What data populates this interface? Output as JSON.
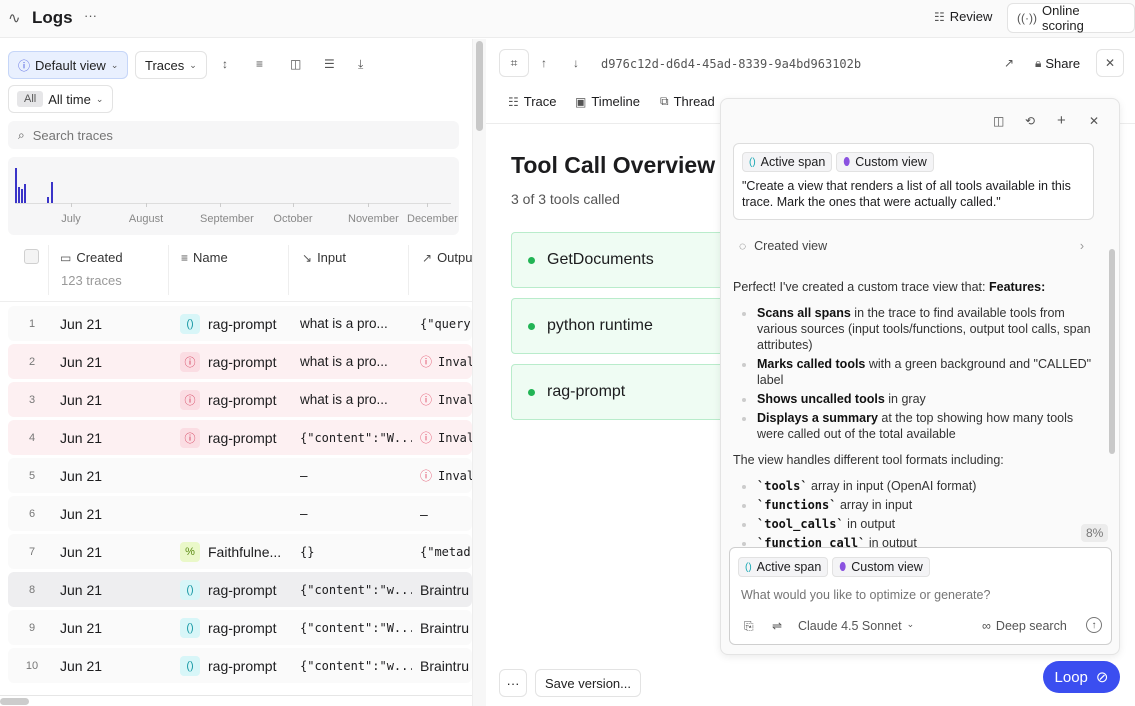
{
  "header": {
    "title": "Logs",
    "more": "···",
    "review": "Review",
    "online_scoring": "Online scoring"
  },
  "toolbar": {
    "view": "Default view",
    "traces": "Traces",
    "time_badge": "All",
    "time": "All time",
    "search_placeholder": "Search traces"
  },
  "histogram": {
    "months": [
      "July",
      "August",
      "September",
      "October",
      "November",
      "December"
    ],
    "bars": [
      1.0,
      0.45,
      0.4,
      0.55,
      0.18,
      0.6
    ]
  },
  "table": {
    "columns": {
      "created": "Created",
      "created_sub": "123 traces",
      "name": "Name",
      "input": "Input",
      "output": "Outpu"
    },
    "rows": [
      {
        "n": "1",
        "date": "Jun 21",
        "badge": "cyan",
        "name": "rag-prompt",
        "input": "what is a pro...",
        "output": "{\"query",
        "out_mono": true,
        "out_err": false,
        "state": ""
      },
      {
        "n": "2",
        "date": "Jun 21",
        "badge": "red",
        "name": "rag-prompt",
        "input": "what is a pro...",
        "output": "Inval",
        "out_mono": true,
        "out_err": true,
        "state": "err"
      },
      {
        "n": "3",
        "date": "Jun 21",
        "badge": "red",
        "name": "rag-prompt",
        "input": "what is a pro...",
        "output": "Inval",
        "out_mono": true,
        "out_err": true,
        "state": "err"
      },
      {
        "n": "4",
        "date": "Jun 21",
        "badge": "red",
        "name": "rag-prompt",
        "input": "{\"content\":\"W...",
        "in_mono": true,
        "output": "Inval",
        "out_mono": true,
        "out_err": true,
        "state": "err"
      },
      {
        "n": "5",
        "date": "Jun 21",
        "badge": "",
        "name": "",
        "input": "–",
        "output": "Inval",
        "out_mono": true,
        "out_err": true,
        "state": ""
      },
      {
        "n": "6",
        "date": "Jun 21",
        "badge": "",
        "name": "",
        "input": "–",
        "output": "–",
        "state": ""
      },
      {
        "n": "7",
        "date": "Jun 21",
        "badge": "lime",
        "name": "Faithfulne...",
        "input": "{}",
        "in_mono": true,
        "output": "{\"metad",
        "out_mono": true,
        "state": ""
      },
      {
        "n": "8",
        "date": "Jun 21",
        "badge": "cyan",
        "name": "rag-prompt",
        "input": "{\"content\":\"w...",
        "in_mono": true,
        "output": "Braintru",
        "state": "sel"
      },
      {
        "n": "9",
        "date": "Jun 21",
        "badge": "cyan",
        "name": "rag-prompt",
        "input": "{\"content\":\"W...",
        "in_mono": true,
        "output": "Braintru",
        "state": ""
      },
      {
        "n": "10",
        "date": "Jun 21",
        "badge": "cyan",
        "name": "rag-prompt",
        "input": "{\"content\":\"w...",
        "in_mono": true,
        "output": "Braintru",
        "state": ""
      }
    ]
  },
  "detail": {
    "trace_id": "d976c12d-d6d4-45ad-8339-9a4bd963102b",
    "share": "Share",
    "tabs": [
      "Trace",
      "Timeline",
      "Thread"
    ],
    "title": "Tool Call Overview",
    "subtitle": "3 of 3 tools called",
    "tools": [
      "GetDocuments",
      "python runtime",
      "rag-prompt"
    ],
    "more": "···",
    "save_version": "Save version...",
    "loop": "Loop"
  },
  "chat": {
    "chip_span": "Active span",
    "chip_view": "Custom view",
    "prompt": "\"Create a view that renders a list of all tools available in this trace. Mark the ones that were actually called.\"",
    "created_view": "Created view",
    "intro": "Perfect! I've created a custom trace view that: ",
    "intro_bold": "Features:",
    "features": [
      {
        "b": "Scans all spans",
        "t": " in the trace to find available tools from various sources (input tools/functions, output tool calls, span attributes)"
      },
      {
        "b": "Marks called tools",
        "t": " with a green background and \"CALLED\" label"
      },
      {
        "b": "Shows uncalled tools",
        "t": " in gray"
      },
      {
        "b": "Displays a summary",
        "t": " at the top showing how many tools were called out of the total available"
      }
    ],
    "formats_intro": "The view handles different tool formats including:",
    "formats": [
      {
        "c": "`tools`",
        "t": " array in input (OpenAI format)"
      },
      {
        "c": "`functions`",
        "t": " array in input"
      },
      {
        "c": "`tool_calls`",
        "t": " in output"
      },
      {
        "c": "`function_call`",
        "t": " in output"
      }
    ],
    "scroll_pct": "8%",
    "input_placeholder": "What would you like to optimize or generate?",
    "model": "Claude 4.5 Sonnet",
    "deep_search": "Deep search"
  },
  "colors": {
    "accent": "#3b4ef0",
    "tool_bg": "#effcf3",
    "error_row": "#fdf0f2"
  }
}
